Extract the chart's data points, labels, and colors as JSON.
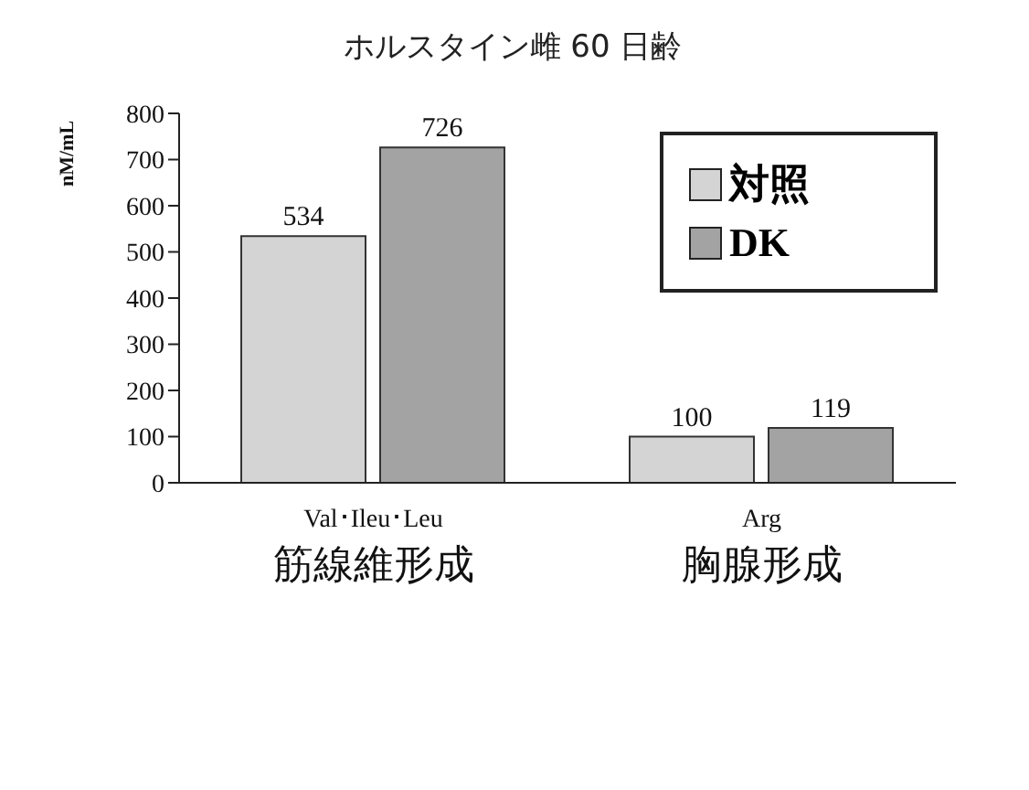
{
  "chart_data": {
    "type": "bar",
    "title": "ホルスタイン雌 60 日齢",
    "ylabel": "nM/mL",
    "categories": [
      "Val･Ileu･Leu\n筋線維形成",
      "Arg\n胸腺形成"
    ],
    "series": [
      {
        "name": "対照",
        "color": "#d4d4d4",
        "values": [
          534,
          100
        ]
      },
      {
        "name": "DK",
        "color": "#a3a3a3",
        "values": [
          726,
          119
        ]
      }
    ],
    "ylim": [
      0,
      800
    ],
    "yticks": [
      0,
      100,
      200,
      300,
      400,
      500,
      600,
      700,
      800
    ],
    "grid": false,
    "legend": "top right",
    "data_labels": true
  }
}
